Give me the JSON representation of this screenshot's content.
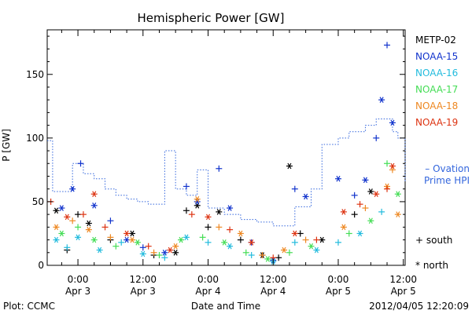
{
  "chart_data": {
    "type": "scatter",
    "title": "Hemispheric Power [GW]",
    "xlabel": "Date and Time",
    "ylabel": "P [GW]",
    "xlim": [
      "2012-04-02T18:20",
      "2012-04-05T12:20"
    ],
    "ylim": [
      0,
      185
    ],
    "x_ticks": [
      {
        "t": "2012-04-03T00:00",
        "label": [
          "0:00",
          "Apr 3"
        ]
      },
      {
        "t": "2012-04-03T12:00",
        "label": [
          "12:00",
          "Apr 3"
        ]
      },
      {
        "t": "2012-04-04T00:00",
        "label": [
          "0:00",
          "Apr 4"
        ]
      },
      {
        "t": "2012-04-04T12:00",
        "label": [
          "12:00",
          "Apr 4"
        ]
      },
      {
        "t": "2012-04-05T00:00",
        "label": [
          "0:00",
          "Apr 5"
        ]
      },
      {
        "t": "2012-04-05T12:00",
        "label": [
          "12:00",
          "Apr 5"
        ]
      }
    ],
    "y_ticks": [
      0,
      50,
      100,
      150
    ],
    "grid": false,
    "legend_position": "right",
    "marker_legend": [
      {
        "symbol": "+",
        "label": "south"
      },
      {
        "symbol": "*",
        "label": "north"
      }
    ],
    "series": [
      {
        "name": "METP-02",
        "color": "#000000",
        "points": [
          {
            "t": "2012-04-02T20:00",
            "y": 43,
            "m": "*"
          },
          {
            "t": "2012-04-02T22:00",
            "y": 12,
            "m": "+"
          },
          {
            "t": "2012-04-03T00:00",
            "y": 40,
            "m": "+"
          },
          {
            "t": "2012-04-03T02:00",
            "y": 33,
            "m": "*"
          },
          {
            "t": "2012-04-03T06:00",
            "y": 20,
            "m": "+"
          },
          {
            "t": "2012-04-03T10:00",
            "y": 25,
            "m": "*"
          },
          {
            "t": "2012-04-03T14:00",
            "y": 8,
            "m": "+"
          },
          {
            "t": "2012-04-03T18:00",
            "y": 10,
            "m": "*"
          },
          {
            "t": "2012-04-03T20:00",
            "y": 43,
            "m": "+"
          },
          {
            "t": "2012-04-03T22:00",
            "y": 47,
            "m": "*"
          },
          {
            "t": "2012-04-04T00:00",
            "y": 30,
            "m": "+"
          },
          {
            "t": "2012-04-04T02:00",
            "y": 42,
            "m": "*"
          },
          {
            "t": "2012-04-04T06:00",
            "y": 20,
            "m": "+"
          },
          {
            "t": "2012-04-04T10:00",
            "y": 8,
            "m": "*"
          },
          {
            "t": "2012-04-04T13:00",
            "y": 6,
            "m": "+"
          },
          {
            "t": "2012-04-04T15:00",
            "y": 78,
            "m": "*"
          },
          {
            "t": "2012-04-04T17:00",
            "y": 25,
            "m": "+"
          },
          {
            "t": "2012-04-04T21:00",
            "y": 20,
            "m": "*"
          },
          {
            "t": "2012-04-05T03:00",
            "y": 40,
            "m": "+"
          },
          {
            "t": "2012-04-05T06:00",
            "y": 58,
            "m": "*"
          }
        ]
      },
      {
        "name": "NOAA-15",
        "color": "#1133cc",
        "points": [
          {
            "t": "2012-04-02T21:00",
            "y": 45,
            "m": "*"
          },
          {
            "t": "2012-04-02T23:00",
            "y": 60,
            "m": "*"
          },
          {
            "t": "2012-04-03T00:30",
            "y": 80,
            "m": "+"
          },
          {
            "t": "2012-04-03T03:00",
            "y": 47,
            "m": "*"
          },
          {
            "t": "2012-04-03T06:00",
            "y": 35,
            "m": "+"
          },
          {
            "t": "2012-04-03T09:00",
            "y": 20,
            "m": "*"
          },
          {
            "t": "2012-04-03T12:00",
            "y": 14,
            "m": "+"
          },
          {
            "t": "2012-04-03T16:00",
            "y": 10,
            "m": "*"
          },
          {
            "t": "2012-04-03T20:00",
            "y": 62,
            "m": "+"
          },
          {
            "t": "2012-04-03T22:00",
            "y": 50,
            "m": "*"
          },
          {
            "t": "2012-04-04T02:00",
            "y": 76,
            "m": "+"
          },
          {
            "t": "2012-04-04T04:00",
            "y": 45,
            "m": "*"
          },
          {
            "t": "2012-04-04T08:00",
            "y": 18,
            "m": "+"
          },
          {
            "t": "2012-04-04T12:00",
            "y": 4,
            "m": "*"
          },
          {
            "t": "2012-04-04T16:00",
            "y": 60,
            "m": "+"
          },
          {
            "t": "2012-04-04T18:00",
            "y": 54,
            "m": "*"
          },
          {
            "t": "2012-04-05T00:00",
            "y": 68,
            "m": "*"
          },
          {
            "t": "2012-04-05T03:00",
            "y": 55,
            "m": "+"
          },
          {
            "t": "2012-04-05T05:00",
            "y": 67,
            "m": "*"
          },
          {
            "t": "2012-04-05T07:00",
            "y": 100,
            "m": "+"
          },
          {
            "t": "2012-04-05T08:00",
            "y": 130,
            "m": "*"
          },
          {
            "t": "2012-04-05T09:00",
            "y": 173,
            "m": "+"
          },
          {
            "t": "2012-04-05T10:00",
            "y": 112,
            "m": "*"
          }
        ]
      },
      {
        "name": "NOAA-16",
        "color": "#22bbdd",
        "points": [
          {
            "t": "2012-04-02T20:00",
            "y": 20,
            "m": "*"
          },
          {
            "t": "2012-04-02T22:00",
            "y": 14,
            "m": "+"
          },
          {
            "t": "2012-04-03T00:00",
            "y": 22,
            "m": "*"
          },
          {
            "t": "2012-04-03T04:00",
            "y": 12,
            "m": "*"
          },
          {
            "t": "2012-04-03T08:00",
            "y": 18,
            "m": "+"
          },
          {
            "t": "2012-04-03T12:00",
            "y": 9,
            "m": "*"
          },
          {
            "t": "2012-04-03T16:00",
            "y": 6,
            "m": "+"
          },
          {
            "t": "2012-04-03T20:00",
            "y": 22,
            "m": "*"
          },
          {
            "t": "2012-04-04T00:00",
            "y": 18,
            "m": "+"
          },
          {
            "t": "2012-04-04T04:00",
            "y": 15,
            "m": "*"
          },
          {
            "t": "2012-04-04T08:00",
            "y": 8,
            "m": "+"
          },
          {
            "t": "2012-04-04T12:00",
            "y": 3,
            "m": "*"
          },
          {
            "t": "2012-04-04T16:00",
            "y": 18,
            "m": "+"
          },
          {
            "t": "2012-04-04T20:00",
            "y": 12,
            "m": "*"
          },
          {
            "t": "2012-04-05T00:00",
            "y": 18,
            "m": "+"
          },
          {
            "t": "2012-04-05T04:00",
            "y": 25,
            "m": "*"
          },
          {
            "t": "2012-04-05T08:00",
            "y": 42,
            "m": "+"
          }
        ]
      },
      {
        "name": "NOAA-17",
        "color": "#44dd55",
        "points": [
          {
            "t": "2012-04-02T21:00",
            "y": 25,
            "m": "*"
          },
          {
            "t": "2012-04-03T00:00",
            "y": 30,
            "m": "+"
          },
          {
            "t": "2012-04-03T03:00",
            "y": 20,
            "m": "*"
          },
          {
            "t": "2012-04-03T07:00",
            "y": 15,
            "m": "+"
          },
          {
            "t": "2012-04-03T11:00",
            "y": 18,
            "m": "*"
          },
          {
            "t": "2012-04-03T15:00",
            "y": 8,
            "m": "+"
          },
          {
            "t": "2012-04-03T19:00",
            "y": 20,
            "m": "*"
          },
          {
            "t": "2012-04-03T23:00",
            "y": 22,
            "m": "+"
          },
          {
            "t": "2012-04-04T03:00",
            "y": 18,
            "m": "*"
          },
          {
            "t": "2012-04-04T07:00",
            "y": 10,
            "m": "+"
          },
          {
            "t": "2012-04-04T11:00",
            "y": 5,
            "m": "*"
          },
          {
            "t": "2012-04-04T15:00",
            "y": 10,
            "m": "+"
          },
          {
            "t": "2012-04-04T19:00",
            "y": 15,
            "m": "*"
          },
          {
            "t": "2012-04-05T02:00",
            "y": 25,
            "m": "+"
          },
          {
            "t": "2012-04-05T06:00",
            "y": 35,
            "m": "*"
          },
          {
            "t": "2012-04-05T09:00",
            "y": 80,
            "m": "+"
          },
          {
            "t": "2012-04-05T11:00",
            "y": 56,
            "m": "*"
          }
        ]
      },
      {
        "name": "NOAA-18",
        "color": "#ee8822",
        "points": [
          {
            "t": "2012-04-02T20:00",
            "y": 30,
            "m": "*"
          },
          {
            "t": "2012-04-02T23:00",
            "y": 35,
            "m": "+"
          },
          {
            "t": "2012-04-03T02:00",
            "y": 28,
            "m": "*"
          },
          {
            "t": "2012-04-03T06:00",
            "y": 22,
            "m": "+"
          },
          {
            "t": "2012-04-03T10:00",
            "y": 20,
            "m": "*"
          },
          {
            "t": "2012-04-03T14:00",
            "y": 10,
            "m": "+"
          },
          {
            "t": "2012-04-03T18:00",
            "y": 15,
            "m": "*"
          },
          {
            "t": "2012-04-03T22:00",
            "y": 52,
            "m": "*"
          },
          {
            "t": "2012-04-04T02:00",
            "y": 30,
            "m": "+"
          },
          {
            "t": "2012-04-04T06:00",
            "y": 25,
            "m": "*"
          },
          {
            "t": "2012-04-04T10:00",
            "y": 8,
            "m": "+"
          },
          {
            "t": "2012-04-04T14:00",
            "y": 12,
            "m": "*"
          },
          {
            "t": "2012-04-04T18:00",
            "y": 20,
            "m": "+"
          },
          {
            "t": "2012-04-05T01:00",
            "y": 30,
            "m": "*"
          },
          {
            "t": "2012-04-05T05:00",
            "y": 45,
            "m": "+"
          },
          {
            "t": "2012-04-05T09:00",
            "y": 62,
            "m": "*"
          },
          {
            "t": "2012-04-05T10:00",
            "y": 75,
            "m": "+"
          },
          {
            "t": "2012-04-05T11:00",
            "y": 40,
            "m": "*"
          }
        ]
      },
      {
        "name": "NOAA-19",
        "color": "#dd3311",
        "points": [
          {
            "t": "2012-04-02T19:00",
            "y": 50,
            "m": "+"
          },
          {
            "t": "2012-04-02T22:00",
            "y": 38,
            "m": "*"
          },
          {
            "t": "2012-04-03T01:00",
            "y": 40,
            "m": "+"
          },
          {
            "t": "2012-04-03T03:00",
            "y": 56,
            "m": "*"
          },
          {
            "t": "2012-04-03T05:00",
            "y": 30,
            "m": "+"
          },
          {
            "t": "2012-04-03T09:00",
            "y": 25,
            "m": "*"
          },
          {
            "t": "2012-04-03T13:00",
            "y": 15,
            "m": "+"
          },
          {
            "t": "2012-04-03T17:00",
            "y": 12,
            "m": "*"
          },
          {
            "t": "2012-04-03T21:00",
            "y": 40,
            "m": "+"
          },
          {
            "t": "2012-04-04T00:00",
            "y": 38,
            "m": "*"
          },
          {
            "t": "2012-04-04T04:00",
            "y": 28,
            "m": "+"
          },
          {
            "t": "2012-04-04T08:00",
            "y": 18,
            "m": "*"
          },
          {
            "t": "2012-04-04T12:00",
            "y": 6,
            "m": "+"
          },
          {
            "t": "2012-04-04T16:00",
            "y": 25,
            "m": "*"
          },
          {
            "t": "2012-04-04T20:00",
            "y": 20,
            "m": "+"
          },
          {
            "t": "2012-04-05T01:00",
            "y": 42,
            "m": "*"
          },
          {
            "t": "2012-04-05T04:00",
            "y": 48,
            "m": "+"
          },
          {
            "t": "2012-04-05T07:00",
            "y": 56,
            "m": "*"
          },
          {
            "t": "2012-04-05T09:00",
            "y": 60,
            "m": "+"
          },
          {
            "t": "2012-04-05T10:00",
            "y": 78,
            "m": "*"
          }
        ]
      }
    ],
    "ovation": {
      "name": "– Ovation\nPrime HPI",
      "color": "#3366dd",
      "step_points": [
        {
          "t": "2012-04-02T18:20",
          "y": 98
        },
        {
          "t": "2012-04-02T19:20",
          "y": 58
        },
        {
          "t": "2012-04-02T23:00",
          "y": 80
        },
        {
          "t": "2012-04-03T01:00",
          "y": 72
        },
        {
          "t": "2012-04-03T03:00",
          "y": 68
        },
        {
          "t": "2012-04-03T05:00",
          "y": 60
        },
        {
          "t": "2012-04-03T07:00",
          "y": 55
        },
        {
          "t": "2012-04-03T09:00",
          "y": 52
        },
        {
          "t": "2012-04-03T11:00",
          "y": 50
        },
        {
          "t": "2012-04-03T13:00",
          "y": 48
        },
        {
          "t": "2012-04-03T16:00",
          "y": 90
        },
        {
          "t": "2012-04-03T18:00",
          "y": 60
        },
        {
          "t": "2012-04-03T20:00",
          "y": 55
        },
        {
          "t": "2012-04-03T22:00",
          "y": 75
        },
        {
          "t": "2012-04-04T00:00",
          "y": 45
        },
        {
          "t": "2012-04-04T03:00",
          "y": 40
        },
        {
          "t": "2012-04-04T06:00",
          "y": 36
        },
        {
          "t": "2012-04-04T09:00",
          "y": 34
        },
        {
          "t": "2012-04-04T12:00",
          "y": 31
        },
        {
          "t": "2012-04-04T16:00",
          "y": 46
        },
        {
          "t": "2012-04-04T19:00",
          "y": 60
        },
        {
          "t": "2012-04-04T21:00",
          "y": 95
        },
        {
          "t": "2012-04-05T00:00",
          "y": 100
        },
        {
          "t": "2012-04-05T02:00",
          "y": 105
        },
        {
          "t": "2012-04-05T05:00",
          "y": 110
        },
        {
          "t": "2012-04-05T07:00",
          "y": 115
        },
        {
          "t": "2012-04-05T10:00",
          "y": 105
        },
        {
          "t": "2012-04-05T11:00",
          "y": 100
        },
        {
          "t": "2012-04-05T12:20",
          "y": 65
        }
      ]
    }
  },
  "footer": {
    "plot_credit": "Plot: CCMC",
    "timestamp": "2012/04/05 12:20:09"
  }
}
